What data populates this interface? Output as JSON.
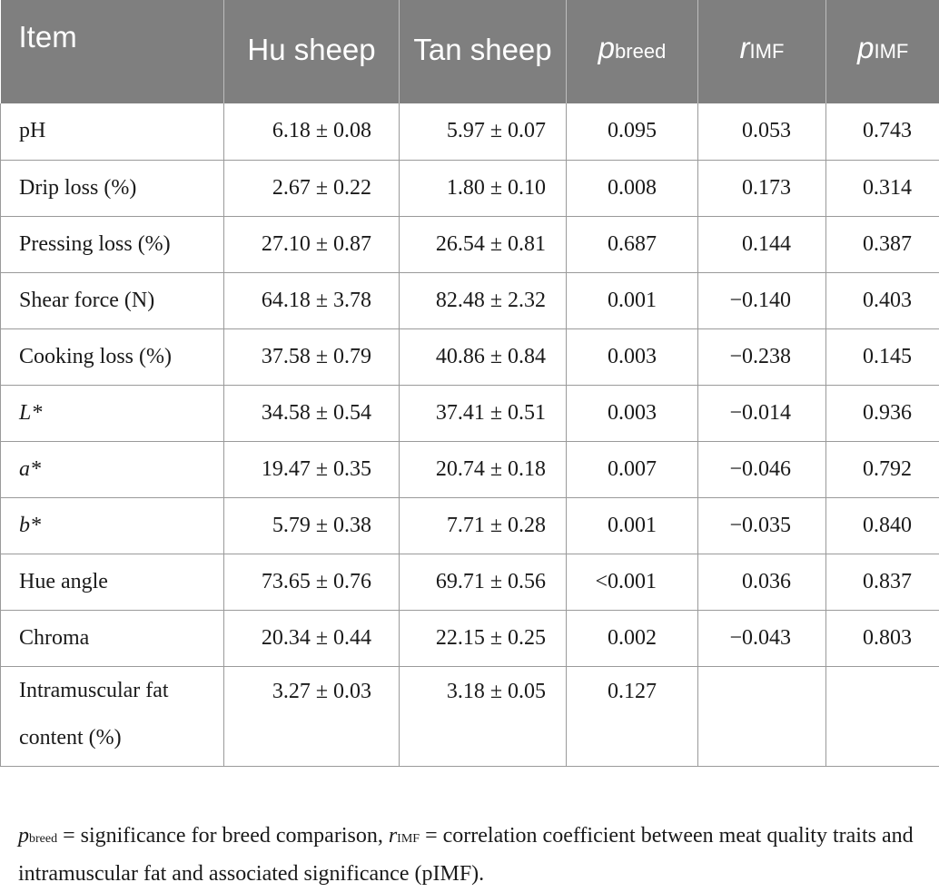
{
  "table": {
    "header": {
      "item": "Item",
      "hu": "Hu sheep",
      "tan": "Tan sheep",
      "pbreed_base": "p",
      "pbreed_sub": "breed",
      "rimf_base": "r",
      "rimf_sub": "IMF",
      "pimf_base": "p",
      "pimf_sub": "IMF"
    },
    "rows": [
      {
        "item": "pH",
        "hu": "6.18 ± 0.08",
        "tan": "5.97 ± 0.07",
        "pbreed": "0.095",
        "rimf": "0.053",
        "pimf": "0.743"
      },
      {
        "item": "Drip loss (%)",
        "hu": "2.67 ± 0.22",
        "tan": "1.80 ± 0.10",
        "pbreed": "0.008",
        "rimf": "0.173",
        "pimf": "0.314"
      },
      {
        "item": "Pressing loss (%)",
        "hu": "27.10 ± 0.87",
        "tan": "26.54 ± 0.81",
        "pbreed": "0.687",
        "rimf": "0.144",
        "pimf": "0.387"
      },
      {
        "item": "Shear force (N)",
        "hu": "64.18 ± 3.78",
        "tan": "82.48 ± 2.32",
        "pbreed": "0.001",
        "rimf": "−0.140",
        "pimf": "0.403"
      },
      {
        "item": "Cooking loss (%)",
        "hu": "37.58 ± 0.79",
        "tan": "40.86 ± 0.84",
        "pbreed": "0.003",
        "rimf": "−0.238",
        "pimf": "0.145"
      },
      {
        "item": "L*",
        "hu": "34.58 ± 0.54",
        "tan": "37.41 ± 0.51",
        "pbreed": "0.003",
        "rimf": "−0.014",
        "pimf": "0.936"
      },
      {
        "item": "a*",
        "hu": "19.47 ± 0.35",
        "tan": "20.74 ± 0.18",
        "pbreed": "0.007",
        "rimf": "−0.046",
        "pimf": "0.792"
      },
      {
        "item": "b*",
        "hu": "5.79 ± 0.38",
        "tan": "7.71 ± 0.28",
        "pbreed": "0.001",
        "rimf": "−0.035",
        "pimf": "0.840"
      },
      {
        "item": "Hue angle",
        "hu": "73.65 ± 0.76",
        "tan": "69.71 ± 0.56",
        "pbreed": "<0.001",
        "rimf": "0.036",
        "pimf": "0.837"
      },
      {
        "item": "Chroma",
        "hu": "20.34 ± 0.44",
        "tan": "22.15 ± 0.25",
        "pbreed": "0.002",
        "rimf": "−0.043",
        "pimf": "0.803"
      },
      {
        "item": "Intramuscular fat content (%)",
        "hu": "3.27 ± 0.03",
        "tan": "3.18 ± 0.05",
        "pbreed": "0.127",
        "rimf": "",
        "pimf": ""
      }
    ]
  },
  "footnote": {
    "p_base": "p",
    "p_sub": "breed",
    "part1": " = significance for breed comparison, ",
    "r_base": "r",
    "r_sub": "IMF",
    "part2": " = correlation coefficient between meat quality traits and intramuscular fat and associated significance (pIMF)."
  },
  "colors": {
    "header_bg": "#7f7f7f",
    "header_text": "#ffffff",
    "grid": "#9a9a9a"
  }
}
